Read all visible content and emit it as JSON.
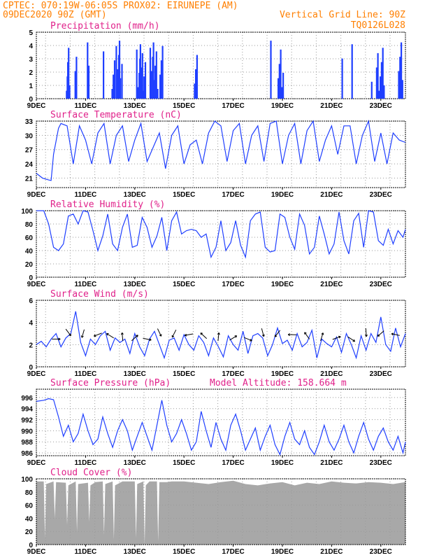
{
  "header": {
    "left_line1": "CPTEC:   070:19W-06:05S   PROX02: EIRUNEPE (AM)",
    "left_line2": "09DEC2020 90Z (GMT)",
    "right_line2": "Vertical Grid Line: 90Z",
    "right_line3": "TQ0126L028"
  },
  "colors": {
    "header": "#ff7f00",
    "title": "#e0218a",
    "series": "#1f3fff",
    "cloud": "#a8a8a8",
    "arrow": "#000000"
  },
  "x_axis": {
    "labels": [
      "9DEC",
      "11DEC",
      "13DEC",
      "15DEC",
      "17DEC",
      "19DEC",
      "21DEC",
      "23DEC"
    ],
    "label_days": [
      0,
      2,
      4,
      6,
      8,
      10,
      12,
      14
    ],
    "start_label": "9DEC",
    "days_span": 15
  },
  "chart_data": [
    {
      "id": "precip",
      "type": "bar",
      "title": "Precipitation (mm/h)",
      "ylim": [
        0,
        5
      ],
      "yticks": [
        0,
        1,
        2,
        3,
        4,
        5
      ],
      "grid": true,
      "x_days": [
        1.2,
        1.23,
        1.25,
        1.28,
        1.32,
        1.55,
        1.6,
        2.05,
        2.08,
        2.1,
        2.7,
        3.05,
        3.1,
        3.15,
        3.22,
        3.25,
        3.28,
        3.32,
        3.35,
        3.38,
        3.45,
        4.05,
        4.1,
        4.15,
        4.18,
        4.2,
        4.22,
        4.25,
        4.28,
        4.3,
        4.35,
        4.4,
        4.6,
        4.63,
        4.66,
        4.7,
        4.73,
        4.76,
        4.8,
        4.85,
        4.9,
        5.0,
        5.05,
        5.1,
        6.4,
        6.45,
        6.5,
        9.5,
        9.8,
        9.85,
        9.9,
        9.95,
        10.0,
        12.4,
        12.8,
        13.6,
        13.8,
        13.85,
        13.9,
        13.95,
        14.0,
        14.05,
        14.1,
        14.7,
        14.75,
        14.8,
        14.85
      ]
    },
    {
      "id": "temp",
      "type": "line",
      "title": "Surface Temperature (nC)",
      "ylim": [
        19,
        33
      ],
      "yticks": [
        21,
        24,
        27,
        30,
        33
      ],
      "grid": true,
      "x_days": [
        0,
        0.25,
        0.5,
        0.6,
        0.7,
        0.9,
        1.0,
        1.25,
        1.5,
        1.75,
        2.0,
        2.25,
        2.5,
        2.75,
        3.0,
        3.25,
        3.5,
        3.75,
        4.0,
        4.25,
        4.5,
        4.75,
        5.0,
        5.25,
        5.5,
        5.75,
        6.0,
        6.25,
        6.5,
        6.75,
        7.0,
        7.25,
        7.5,
        7.75,
        8.0,
        8.25,
        8.5,
        8.75,
        9.0,
        9.25,
        9.5,
        9.75,
        10.0,
        10.25,
        10.5,
        10.75,
        11.0,
        11.25,
        11.5,
        11.75,
        12.0,
        12.25,
        12.5,
        12.75,
        13.0,
        13.25,
        13.5,
        13.75,
        14.0,
        14.25,
        14.5,
        14.75,
        15.0
      ],
      "y": [
        22.0,
        21.0,
        20.6,
        20.5,
        26.0,
        31.5,
        32.5,
        32.0,
        24.0,
        32.0,
        29.0,
        24.0,
        30.5,
        32.5,
        24.0,
        30.0,
        32.0,
        24.5,
        29.0,
        32.5,
        24.5,
        27.5,
        30.5,
        23.0,
        30.0,
        32.0,
        24.0,
        28.0,
        29.0,
        24.0,
        30.5,
        33.0,
        32.0,
        24.5,
        31.0,
        32.5,
        24.0,
        30.0,
        32.0,
        24.5,
        32.5,
        33.0,
        24.0,
        30.0,
        32.5,
        24.0,
        31.0,
        33.0,
        24.5,
        29.0,
        32.0,
        26.0,
        32.0,
        32.0,
        24.0,
        30.0,
        33.0,
        24.5,
        30.5,
        24.0,
        30.5,
        29.0,
        28.5
      ]
    },
    {
      "id": "rh",
      "type": "line",
      "title": "Relative Humidity (%)",
      "ylim": [
        0,
        100
      ],
      "yticks": [
        0,
        20,
        40,
        60,
        80,
        100
      ],
      "grid": true,
      "x_days": [
        0,
        0.3,
        0.5,
        0.7,
        0.9,
        1.1,
        1.3,
        1.5,
        1.7,
        1.9,
        2.1,
        2.3,
        2.5,
        2.7,
        2.9,
        3.1,
        3.3,
        3.5,
        3.7,
        3.9,
        4.1,
        4.3,
        4.5,
        4.7,
        4.9,
        5.1,
        5.3,
        5.5,
        5.7,
        5.9,
        6.1,
        6.3,
        6.5,
        6.7,
        6.9,
        7.1,
        7.3,
        7.5,
        7.7,
        7.9,
        8.1,
        8.3,
        8.5,
        8.7,
        8.9,
        9.1,
        9.3,
        9.5,
        9.7,
        9.9,
        10.1,
        10.3,
        10.5,
        10.7,
        10.9,
        11.1,
        11.3,
        11.5,
        11.7,
        11.9,
        12.1,
        12.3,
        12.5,
        12.7,
        12.9,
        13.1,
        13.3,
        13.5,
        13.7,
        13.9,
        14.1,
        14.3,
        14.5,
        14.7,
        14.9,
        15.0
      ],
      "y": [
        100,
        100,
        80,
        45,
        40,
        50,
        92,
        95,
        80,
        100,
        98,
        70,
        40,
        62,
        95,
        50,
        40,
        75,
        95,
        45,
        48,
        90,
        75,
        45,
        62,
        90,
        40,
        85,
        98,
        65,
        70,
        72,
        70,
        60,
        65,
        30,
        45,
        85,
        40,
        52,
        85,
        48,
        30,
        85,
        95,
        98,
        45,
        38,
        40,
        95,
        90,
        60,
        42,
        95,
        78,
        35,
        45,
        92,
        65,
        35,
        50,
        98,
        55,
        35,
        85,
        96,
        45,
        100,
        98,
        55,
        48,
        72,
        50,
        70,
        60,
        72
      ]
    },
    {
      "id": "wind",
      "type": "line",
      "title": "Surface Wind (m/s)",
      "ylim": [
        0,
        6
      ],
      "yticks": [
        0,
        2,
        4,
        6
      ],
      "grid": true,
      "x_days": [
        0,
        0.2,
        0.4,
        0.6,
        0.8,
        1.0,
        1.2,
        1.4,
        1.6,
        1.8,
        2.0,
        2.2,
        2.4,
        2.6,
        2.8,
        3.0,
        3.2,
        3.4,
        3.6,
        3.8,
        4.0,
        4.2,
        4.4,
        4.6,
        4.8,
        5.0,
        5.2,
        5.4,
        5.6,
        5.8,
        6.0,
        6.2,
        6.4,
        6.6,
        6.8,
        7.0,
        7.2,
        7.4,
        7.6,
        7.8,
        8.0,
        8.2,
        8.4,
        8.6,
        8.8,
        9.0,
        9.2,
        9.4,
        9.6,
        9.8,
        10.0,
        10.2,
        10.4,
        10.6,
        10.8,
        11.0,
        11.2,
        11.4,
        11.6,
        11.8,
        12.0,
        12.2,
        12.4,
        12.6,
        12.8,
        13.0,
        13.2,
        13.4,
        13.6,
        13.8,
        14.0,
        14.2,
        14.4,
        14.6,
        14.8,
        15.0
      ],
      "y": [
        2.0,
        2.3,
        1.8,
        2.5,
        3.0,
        1.8,
        2.6,
        3.0,
        5.0,
        2.2,
        1.0,
        2.5,
        2.0,
        2.8,
        3.2,
        1.5,
        2.6,
        2.2,
        2.5,
        1.2,
        3.0,
        1.8,
        1.0,
        2.5,
        3.2,
        2.0,
        0.8,
        2.4,
        2.6,
        1.5,
        2.9,
        2.0,
        1.5,
        2.8,
        2.2,
        1.0,
        2.6,
        1.8,
        0.9,
        2.8,
        2.0,
        1.5,
        3.2,
        1.2,
        2.8,
        3.0,
        2.6,
        1.0,
        2.0,
        3.5,
        2.1,
        2.4,
        1.5,
        3.0,
        1.8,
        2.2,
        3.3,
        0.8,
        2.5,
        2.1,
        1.8,
        2.7,
        1.3,
        3.0,
        2.0,
        0.8,
        2.8,
        1.5,
        3.0,
        2.2,
        4.5,
        2.0,
        1.4,
        3.5,
        1.8,
        3.0
      ]
    },
    {
      "id": "pres",
      "type": "line",
      "title": "Surface Pressure (hPa)",
      "extra_label": "Model Altitude: 158.664 m",
      "ylim": [
        985.5,
        997.5
      ],
      "yticks": [
        986,
        988,
        990,
        992,
        994,
        996
      ],
      "grid": true,
      "x_days": [
        0,
        0.3,
        0.5,
        0.7,
        0.9,
        1.1,
        1.3,
        1.5,
        1.7,
        1.9,
        2.1,
        2.3,
        2.5,
        2.7,
        2.9,
        3.1,
        3.3,
        3.5,
        3.7,
        3.9,
        4.1,
        4.3,
        4.5,
        4.7,
        4.9,
        5.1,
        5.3,
        5.5,
        5.7,
        5.9,
        6.1,
        6.3,
        6.5,
        6.7,
        6.9,
        7.1,
        7.3,
        7.5,
        7.7,
        7.9,
        8.1,
        8.3,
        8.5,
        8.7,
        8.9,
        9.1,
        9.3,
        9.5,
        9.7,
        9.9,
        10.1,
        10.3,
        10.5,
        10.7,
        10.9,
        11.1,
        11.3,
        11.5,
        11.7,
        11.9,
        12.1,
        12.3,
        12.5,
        12.7,
        12.9,
        13.1,
        13.3,
        13.5,
        13.7,
        13.9,
        14.1,
        14.3,
        14.5,
        14.7,
        14.9,
        15.0
      ],
      "y": [
        995.3,
        995.5,
        995.8,
        995.6,
        992.5,
        989.0,
        991.0,
        988.0,
        989.5,
        993.0,
        990.0,
        987.5,
        988.5,
        992.5,
        989.5,
        987.0,
        990.0,
        992.0,
        990.0,
        986.5,
        989.0,
        991.5,
        989.0,
        986.5,
        991.0,
        995.5,
        991.0,
        988.0,
        989.5,
        992.0,
        989.5,
        986.5,
        988.0,
        993.5,
        990.0,
        987.0,
        991.5,
        988.5,
        986.5,
        991.0,
        993.0,
        990.0,
        986.5,
        988.5,
        990.5,
        986.5,
        989.0,
        991.0,
        987.5,
        985.7,
        989.0,
        991.5,
        988.5,
        987.5,
        990.0,
        987.0,
        985.7,
        988.0,
        991.0,
        988.0,
        986.5,
        988.5,
        991.0,
        988.0,
        986.0,
        989.0,
        991.5,
        988.5,
        986.5,
        989.0,
        990.5,
        988.0,
        986.5,
        989.0,
        986.0,
        988.0
      ]
    },
    {
      "id": "cloud",
      "type": "area",
      "title": "Cloud Cover (%)",
      "ylim": [
        0,
        100
      ],
      "yticks": [
        0,
        20,
        40,
        60,
        80,
        100
      ],
      "grid": true,
      "x_days": [
        0,
        0.3,
        0.35,
        0.4,
        0.7,
        0.75,
        0.8,
        1.2,
        1.25,
        1.3,
        1.6,
        1.65,
        1.7,
        2.1,
        2.15,
        2.2,
        2.4,
        2.7,
        2.75,
        2.8,
        3.1,
        3.15,
        3.2,
        3.5,
        4.0,
        4.05,
        4.1,
        4.35,
        4.4,
        4.45,
        4.6,
        4.9,
        4.95,
        5.0,
        5.3,
        5.5,
        6.0,
        6.5,
        7.0,
        7.5,
        8.0,
        8.5,
        9.0,
        9.5,
        10.0,
        10.5,
        11.0,
        11.5,
        12.0,
        12.5,
        13.0,
        13.5,
        14.0,
        14.5,
        15.0
      ],
      "y": [
        96,
        96,
        10,
        92,
        96,
        40,
        95,
        94,
        30,
        90,
        96,
        20,
        92,
        94,
        35,
        90,
        95,
        96,
        15,
        92,
        96,
        8,
        90,
        96,
        96,
        10,
        92,
        96,
        0,
        90,
        96,
        96,
        5,
        95,
        95,
        96,
        96,
        94,
        92,
        95,
        97,
        92,
        90,
        93,
        95,
        90,
        94,
        92,
        96,
        94,
        93,
        95,
        94,
        92,
        95
      ]
    }
  ]
}
